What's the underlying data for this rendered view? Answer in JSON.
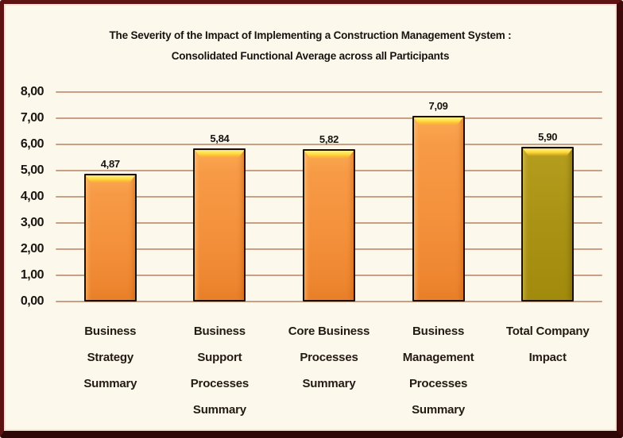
{
  "frame": {
    "background_color": "#FCF8EB",
    "border_color": "#5E1212"
  },
  "title": {
    "line1": "The Severity of the Impact of Implementing a Construction Management System :",
    "line2": "Consolidated Functional Average across all Participants"
  },
  "chart_data": {
    "type": "bar",
    "title": "The Severity of the Impact of Implementing a Construction Management System : Consolidated Functional Average across all Participants",
    "categories": [
      "Business Strategy Summary",
      "Business Support Processes Summary",
      "Core Business Processes Summary",
      "Business Management Processes Summary",
      "Total Company Impact"
    ],
    "category_lines": [
      [
        "Business",
        "Strategy",
        "Summary"
      ],
      [
        "Business",
        "Support",
        "Processes",
        "Summary"
      ],
      [
        "Core Business",
        "Processes",
        "Summary"
      ],
      [
        "Business",
        "Management",
        "Processes",
        "Summary"
      ],
      [
        "Total Company",
        "Impact"
      ]
    ],
    "values": [
      4.87,
      5.84,
      5.82,
      7.09,
      5.9
    ],
    "value_labels": [
      "4,87",
      "5,84",
      "5,82",
      "7,09",
      "5,90"
    ],
    "bar_styles": [
      "orange",
      "orange",
      "orange",
      "orange",
      "olive"
    ],
    "bar_colors": {
      "orange": "#F4913C",
      "olive": "#A8910F"
    },
    "bar_border_color": "#1C1006",
    "xlabel": "",
    "ylabel": "",
    "ylim": [
      0,
      8
    ],
    "ytick_labels": [
      "0,00",
      "1,00",
      "2,00",
      "3,00",
      "4,00",
      "5,00",
      "6,00",
      "7,00",
      "8,00"
    ],
    "grid": true,
    "gridline_color": "#C9A084",
    "legend": "none"
  }
}
